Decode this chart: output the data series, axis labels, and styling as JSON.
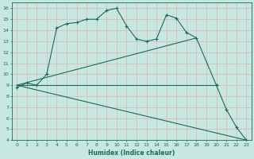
{
  "xlabel": "Humidex (Indice chaleur)",
  "bg_color": "#c6e8e0",
  "grid_color": "#e0b0b0",
  "line_color": "#1a6b5a",
  "xlim": [
    -0.5,
    23.5
  ],
  "ylim": [
    4,
    16.5
  ],
  "xticks": [
    0,
    1,
    2,
    3,
    4,
    5,
    6,
    7,
    8,
    9,
    10,
    11,
    12,
    13,
    14,
    15,
    16,
    17,
    18,
    19,
    20,
    21,
    22,
    23
  ],
  "yticks": [
    4,
    5,
    6,
    7,
    8,
    9,
    10,
    11,
    12,
    13,
    14,
    15,
    16
  ],
  "line1_x": [
    0,
    1,
    2,
    3,
    4,
    5,
    6,
    7,
    8,
    9,
    10,
    11,
    12,
    13,
    14,
    15,
    16,
    17,
    18,
    20,
    21,
    22,
    23
  ],
  "line1_y": [
    8.8,
    9.2,
    9.0,
    10.0,
    14.2,
    14.6,
    14.7,
    15.0,
    15.0,
    15.8,
    16.0,
    14.4,
    13.2,
    13.0,
    13.2,
    15.4,
    15.1,
    13.8,
    13.3,
    9.0,
    6.8,
    5.2,
    4.0
  ],
  "line2_x": [
    0,
    20
  ],
  "line2_y": [
    9.0,
    9.0
  ],
  "line3_x": [
    0,
    23
  ],
  "line3_y": [
    9.0,
    4.0
  ],
  "line4_x": [
    0,
    18
  ],
  "line4_y": [
    9.0,
    13.3
  ],
  "marker_x": [
    20
  ],
  "marker_y": [
    9.0
  ]
}
